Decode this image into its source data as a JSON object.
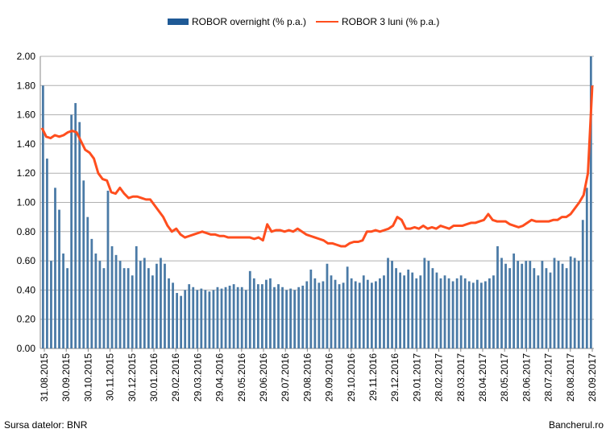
{
  "legend": {
    "overnight_label": "ROBOR overnight (% p.a.)",
    "month3_label": "ROBOR 3 luni (% p.a.)"
  },
  "footer": {
    "source": "Sursa datelor: BNR",
    "brand": "Bancherul.ro"
  },
  "colors": {
    "bars": "#4a7aa6",
    "line": "#ff4e1e",
    "grid": "#b0b0b0"
  },
  "chart_data": {
    "type": "bar+line",
    "title": "",
    "xlabel": "",
    "ylabel": "",
    "ylim": [
      0,
      2
    ],
    "yticks": [
      "0.00",
      "0.20",
      "0.40",
      "0.60",
      "0.80",
      "1.00",
      "1.20",
      "1.40",
      "1.60",
      "1.80",
      "2.00"
    ],
    "xticks": [
      "31.08.2015",
      "30.09.2015",
      "30.10.2015",
      "30.11.2015",
      "30.12.2015",
      "30.01.2016",
      "29.02.2016",
      "29.03.2016",
      "29.04.2016",
      "29.05.2016",
      "29.06.2016",
      "29.07.2016",
      "29.08.2016",
      "29.09.2016",
      "29.10.2016",
      "29.11.2016",
      "29.12.2016",
      "29.01.2017",
      "28.02.2017",
      "28.03.2017",
      "28.04.2017",
      "28.05.2017",
      "28.06.2017",
      "28.07.2017",
      "28.08.2017",
      "28.09.2017"
    ],
    "grid": true,
    "legend_position": "top",
    "series": [
      {
        "name": "ROBOR overnight (% p.a.)",
        "kind": "bar",
        "values": [
          1.8,
          1.3,
          0.6,
          1.1,
          0.95,
          0.65,
          0.55,
          1.6,
          1.68,
          1.55,
          1.15,
          0.9,
          0.75,
          0.65,
          0.6,
          0.55,
          1.08,
          0.7,
          0.64,
          0.6,
          0.55,
          0.55,
          0.5,
          0.7,
          0.6,
          0.62,
          0.55,
          0.5,
          0.58,
          0.62,
          0.58,
          0.48,
          0.45,
          0.38,
          0.36,
          0.4,
          0.44,
          0.42,
          0.4,
          0.41,
          0.4,
          0.39,
          0.4,
          0.42,
          0.41,
          0.42,
          0.43,
          0.44,
          0.42,
          0.42,
          0.4,
          0.53,
          0.48,
          0.44,
          0.44,
          0.47,
          0.48,
          0.42,
          0.44,
          0.42,
          0.4,
          0.41,
          0.4,
          0.42,
          0.43,
          0.46,
          0.54,
          0.48,
          0.45,
          0.46,
          0.58,
          0.5,
          0.47,
          0.44,
          0.45,
          0.56,
          0.48,
          0.46,
          0.45,
          0.5,
          0.47,
          0.45,
          0.46,
          0.48,
          0.5,
          0.62,
          0.6,
          0.55,
          0.52,
          0.5,
          0.54,
          0.52,
          0.48,
          0.5,
          0.62,
          0.6,
          0.55,
          0.52,
          0.48,
          0.5,
          0.48,
          0.46,
          0.48,
          0.5,
          0.48,
          0.46,
          0.45,
          0.47,
          0.45,
          0.46,
          0.48,
          0.5,
          0.7,
          0.62,
          0.58,
          0.55,
          0.65,
          0.6,
          0.58,
          0.6,
          0.6,
          0.55,
          0.5,
          0.6,
          0.55,
          0.52,
          0.62,
          0.6,
          0.58,
          0.55,
          0.63,
          0.62,
          0.6,
          0.88,
          1.1,
          2.0
        ]
      },
      {
        "name": "ROBOR 3 luni (% p.a.)",
        "kind": "line",
        "values": [
          1.51,
          1.45,
          1.44,
          1.46,
          1.45,
          1.46,
          1.48,
          1.49,
          1.48,
          1.42,
          1.36,
          1.34,
          1.3,
          1.2,
          1.16,
          1.15,
          1.07,
          1.06,
          1.1,
          1.06,
          1.03,
          1.04,
          1.04,
          1.03,
          1.02,
          1.02,
          0.98,
          0.94,
          0.9,
          0.84,
          0.8,
          0.82,
          0.78,
          0.76,
          0.77,
          0.78,
          0.79,
          0.8,
          0.79,
          0.78,
          0.78,
          0.77,
          0.77,
          0.76,
          0.76,
          0.76,
          0.76,
          0.76,
          0.76,
          0.75,
          0.76,
          0.74,
          0.85,
          0.8,
          0.81,
          0.81,
          0.8,
          0.81,
          0.8,
          0.82,
          0.8,
          0.78,
          0.77,
          0.76,
          0.75,
          0.74,
          0.72,
          0.72,
          0.71,
          0.7,
          0.7,
          0.72,
          0.73,
          0.73,
          0.74,
          0.8,
          0.8,
          0.81,
          0.8,
          0.81,
          0.82,
          0.84,
          0.9,
          0.88,
          0.82,
          0.82,
          0.83,
          0.82,
          0.84,
          0.82,
          0.83,
          0.82,
          0.84,
          0.83,
          0.82,
          0.84,
          0.84,
          0.84,
          0.85,
          0.86,
          0.86,
          0.87,
          0.88,
          0.92,
          0.88,
          0.87,
          0.87,
          0.87,
          0.85,
          0.84,
          0.83,
          0.84,
          0.86,
          0.88,
          0.87,
          0.87,
          0.87,
          0.87,
          0.88,
          0.88,
          0.9,
          0.9,
          0.92,
          0.96,
          1.0,
          1.05,
          1.2,
          1.8
        ]
      }
    ]
  }
}
